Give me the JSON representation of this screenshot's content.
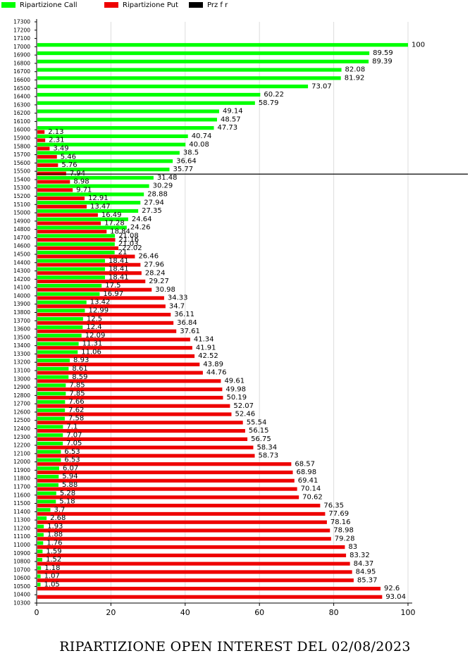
{
  "chart_data": {
    "type": "bar",
    "orientation": "horizontal",
    "title": "RIPARTIZIONE OPEN INTEREST DEL 02/08/2023",
    "xlim": [
      0,
      100
    ],
    "x_ticks": [
      "0",
      "20",
      "40",
      "60",
      "80",
      "100"
    ],
    "grid": true,
    "legend_position": "top-left",
    "series": [
      {
        "name": "Ripartizione Call",
        "color": "#00ff00"
      },
      {
        "name": "Ripartizione Put",
        "color": "#ee0000"
      },
      {
        "name": "Prz f r",
        "color": "#000000"
      }
    ],
    "reference_line_strike": "15500",
    "categories": [
      "17300",
      "17200",
      "17100",
      "17000",
      "16900",
      "16800",
      "16700",
      "16600",
      "16500",
      "16400",
      "16300",
      "16200",
      "16100",
      "16000",
      "15900",
      "15800",
      "15700",
      "15600",
      "15500",
      "15400",
      "15300",
      "15200",
      "15100",
      "15000",
      "14900",
      "14800",
      "14700",
      "14600",
      "14500",
      "14400",
      "14300",
      "14200",
      "14100",
      "14000",
      "13900",
      "13800",
      "13700",
      "13600",
      "13500",
      "13400",
      "13300",
      "13200",
      "13100",
      "13000",
      "12900",
      "12800",
      "12700",
      "12600",
      "12500",
      "12400",
      "12300",
      "12200",
      "12100",
      "12000",
      "11900",
      "11800",
      "11700",
      "11600",
      "11500",
      "11400",
      "11300",
      "11200",
      "11100",
      "11000",
      "10900",
      "10800",
      "10700",
      "10600",
      "10500",
      "10400",
      "10300"
    ],
    "call": [
      "",
      "",
      "",
      "100",
      "89.59",
      "89.39",
      "82.08",
      "81.92",
      "73.07",
      "60.22",
      "58.79",
      "49.14",
      "48.57",
      "47.73",
      "40.74",
      "40.08",
      "38.5",
      "36.64",
      "35.77",
      "31.48",
      "30.29",
      "28.88",
      "27.94",
      "27.35",
      "24.64",
      "24.26",
      "21.08",
      "21.03",
      "21",
      "18.41",
      "18.41",
      "18.41",
      "17.5",
      "16.97",
      "13.42",
      "12.99",
      "12.5",
      "12.4",
      "12.09",
      "11.31",
      "11.06",
      "8.93",
      "8.61",
      "8.59",
      "7.85",
      "7.85",
      "7.66",
      "7.62",
      "7.58",
      "7.1",
      "7.07",
      "7.05",
      "6.53",
      "6.53",
      "6.07",
      "5.94",
      "5.88",
      "5.28",
      "5.18",
      "3.7",
      "2.68",
      "1.93",
      "1.88",
      "1.76",
      "1.59",
      "1.52",
      "1.18",
      "1.07",
      "1.05",
      "",
      ""
    ],
    "put": [
      "",
      "",
      "",
      "",
      "",
      "",
      "",
      "",
      "",
      "",
      "",
      "",
      "",
      "2.13",
      "2.31",
      "3.49",
      "5.46",
      "5.76",
      "7.94",
      "8.98",
      "9.71",
      "12.91",
      "13.47",
      "16.49",
      "17.28",
      "18.84",
      "21.16",
      "22.02",
      "26.46",
      "27.96",
      "28.24",
      "29.27",
      "30.98",
      "34.33",
      "34.7",
      "36.11",
      "36.84",
      "37.61",
      "41.34",
      "41.91",
      "42.52",
      "43.89",
      "44.76",
      "49.61",
      "49.98",
      "50.19",
      "52.07",
      "52.46",
      "55.54",
      "56.15",
      "56.75",
      "58.34",
      "58.73",
      "68.57",
      "68.98",
      "69.41",
      "70.14",
      "70.62",
      "76.35",
      "77.69",
      "78.16",
      "78.98",
      "79.28",
      "83",
      "83.32",
      "84.37",
      "84.95",
      "85.37",
      "92.6",
      "93.04",
      ""
    ]
  }
}
